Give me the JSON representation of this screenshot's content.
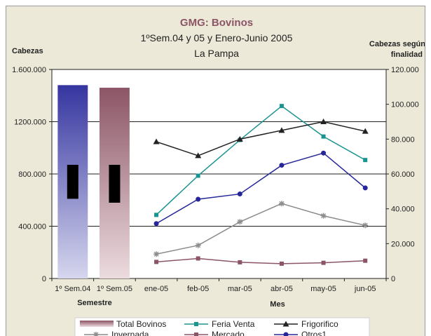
{
  "chart_data": {
    "type": "line",
    "title": "GMG: Bovinos",
    "subtitle": "1ºSem.04 y 05 y  Enero-Junio 2005",
    "subtitle2": "La Pampa",
    "y_left_label": "Cabezas",
    "y_right_label_line1": "Cabezas según",
    "y_right_label_line2": "finalidad",
    "semester_xlabel": "Semestre",
    "month_xlabel": "Mes",
    "y_left_ticks": [
      "0",
      "400.000",
      "800.000",
      "1200.000",
      "1.600.000"
    ],
    "y_right_ticks": [
      "0",
      "20.000",
      "40.000",
      "60.000",
      "80.000",
      "100.000",
      "120.000"
    ],
    "ylim_left": [
      0,
      1600000
    ],
    "ylim_right": [
      0,
      120000
    ],
    "grid": "horizontal",
    "legend_position": "bottom",
    "semesters": [
      "1º Sem.04",
      "1º Sem.05"
    ],
    "total_bovinos": {
      "name": "Total Bovinos",
      "values": [
        1480000,
        1460000
      ],
      "black_box": [
        [
          610000,
          870000
        ],
        [
          580000,
          870000
        ]
      ],
      "colors": [
        [
          "#3535a0",
          "#d6d6ee"
        ],
        [
          "#8c5566",
          "#ecdcdf"
        ]
      ]
    },
    "months": [
      "ene-05",
      "feb-05",
      "mar-05",
      "abr-05",
      "may-05",
      "jun-05"
    ],
    "series": [
      {
        "name": "Feria Venta",
        "color": "#1a9490",
        "marker": "square",
        "values": [
          36500,
          59000,
          79500,
          99000,
          81500,
          68000
        ]
      },
      {
        "name": "Frigorifico",
        "color": "#222222",
        "marker": "triangle",
        "values": [
          78500,
          70500,
          80000,
          85000,
          90000,
          84500
        ]
      },
      {
        "name": "Invernada",
        "color": "#8c8c8c",
        "marker": "star",
        "values": [
          14000,
          19000,
          32500,
          43000,
          36000,
          30500
        ]
      },
      {
        "name": "Mercado",
        "color": "#8c5566",
        "marker": "square",
        "values": [
          9500,
          11500,
          9300,
          8500,
          9000,
          10200
        ]
      },
      {
        "name": "Otros1",
        "color": "#262699",
        "marker": "circle",
        "values": [
          31500,
          45500,
          48500,
          65000,
          72000,
          52000
        ]
      }
    ]
  }
}
